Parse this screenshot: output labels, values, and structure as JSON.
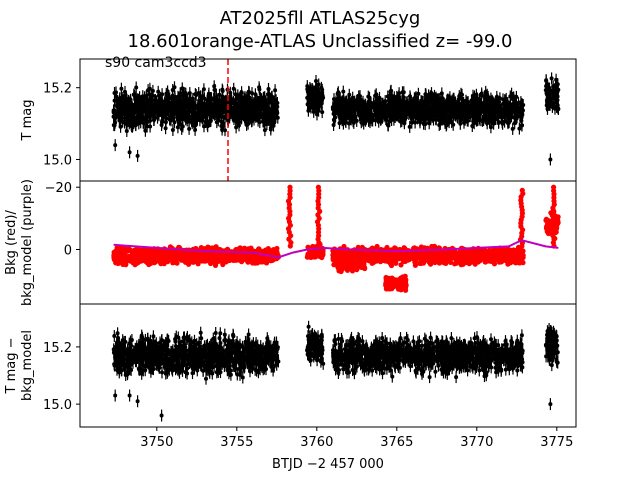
{
  "title_line1": "AT2025fll  ATLAS25cyg",
  "title_line2": "18.601orange-ATLAS Unclassified z= -99.0",
  "annotation": "s90 cam3ccd3",
  "colors": {
    "photometry": "#000000",
    "background": "#ff0000",
    "bkg_model": "#bf00bf",
    "marker": "#ff0000"
  },
  "chart_data": [
    {
      "type": "scatter",
      "panel": "top",
      "ylabel": "T mag",
      "y_inverted": true,
      "ylim": [
        15.28,
        14.94
      ],
      "xlim": [
        3745.2,
        3776.2
      ],
      "yticks": [
        15.0,
        15.2
      ],
      "ytick_labels": [
        "15.0",
        "15.2"
      ],
      "segments": [
        {
          "x": [
            3747.3,
            3757.6
          ],
          "y_center": 15.14,
          "spread": 0.07
        },
        {
          "x": [
            3759.4,
            3760.4
          ],
          "y_center": 15.17,
          "spread": 0.06
        },
        {
          "x": [
            3761.0,
            3772.9
          ],
          "y_center": 15.14,
          "spread": 0.06
        },
        {
          "x": [
            3774.3,
            3775.1
          ],
          "y_center": 15.18,
          "spread": 0.06
        }
      ],
      "outliers": [
        {
          "x": 3747.4,
          "y": 15.04
        },
        {
          "x": 3748.3,
          "y": 15.02
        },
        {
          "x": 3748.8,
          "y": 15.01
        },
        {
          "x": 3774.6,
          "y": 15.0
        }
      ],
      "vline": {
        "x": 3754.45,
        "label": ""
      }
    },
    {
      "type": "scatter",
      "panel": "middle",
      "ylabel_line1": "Bkg (red)/",
      "ylabel_line2": "bkg_model (purple)",
      "ylim": [
        -22,
        17.5
      ],
      "xlim": [
        3745.2,
        3776.2
      ],
      "yticks": [
        0,
        -20
      ],
      "ytick_labels": [
        "0",
        "−20"
      ],
      "series": [
        {
          "name": "Bkg",
          "color": "#ff0000"
        },
        {
          "name": "bkg_model",
          "color": "#bf00bf"
        }
      ],
      "segments": [
        {
          "x": [
            3747.3,
            3757.6
          ],
          "y_center": 2.0,
          "spread": 3.5
        },
        {
          "x": [
            3759.4,
            3760.4
          ],
          "y_center": 1.0,
          "spread": 3.0
        },
        {
          "x": [
            3761.0,
            3772.9
          ],
          "y_center": 2.0,
          "spread": 3.5
        },
        {
          "x": [
            3774.3,
            3775.1
          ],
          "y_center": -8.0,
          "spread": 5.0
        }
      ],
      "bumps": [
        {
          "x": [
            3761.2,
            3763.0
          ],
          "y_center": 5.0
        },
        {
          "x": [
            3764.3,
            3765.6
          ],
          "y_center": 11.0
        }
      ],
      "dips": [
        {
          "x": 3758.3,
          "y": -20
        },
        {
          "x": 3760.1,
          "y": -20
        },
        {
          "x": 3772.8,
          "y": -19
        },
        {
          "x": 3774.8,
          "y": -20
        }
      ],
      "model": [
        {
          "x": 3747.3,
          "y": -1.5
        },
        {
          "x": 3750.0,
          "y": -0.5
        },
        {
          "x": 3753.0,
          "y": 0.5
        },
        {
          "x": 3756.0,
          "y": 1.0
        },
        {
          "x": 3757.6,
          "y": 2.5
        },
        {
          "x": 3758.5,
          "y": 1.0
        },
        {
          "x": 3759.4,
          "y": 0.0
        },
        {
          "x": 3760.4,
          "y": -0.5
        },
        {
          "x": 3762.0,
          "y": 0.0
        },
        {
          "x": 3765.0,
          "y": 0.5
        },
        {
          "x": 3768.0,
          "y": 0.0
        },
        {
          "x": 3770.0,
          "y": -0.5
        },
        {
          "x": 3772.0,
          "y": -1.0
        },
        {
          "x": 3772.8,
          "y": -3.0
        },
        {
          "x": 3774.3,
          "y": -1.0
        },
        {
          "x": 3775.1,
          "y": -0.5
        }
      ]
    },
    {
      "type": "scatter",
      "panel": "bottom",
      "ylabel_line1": "T mag −",
      "ylabel_line2": "bkg_model",
      "y_inverted": true,
      "ylim": [
        15.35,
        14.92
      ],
      "xlim": [
        3745.2,
        3776.2
      ],
      "yticks": [
        15.0,
        15.2
      ],
      "ytick_labels": [
        "15.0",
        "15.2"
      ],
      "xticks": [
        3750,
        3755,
        3760,
        3765,
        3770,
        3775
      ],
      "xtick_labels": [
        "3750",
        "3755",
        "3760",
        "3765",
        "3770",
        "3775"
      ],
      "xlabel": "BTJD −2 457 000",
      "segments": [
        {
          "x": [
            3747.3,
            3757.6
          ],
          "y_center": 15.17,
          "spread": 0.09
        },
        {
          "x": [
            3759.4,
            3760.4
          ],
          "y_center": 15.2,
          "spread": 0.08
        },
        {
          "x": [
            3761.0,
            3772.9
          ],
          "y_center": 15.17,
          "spread": 0.08
        },
        {
          "x": [
            3774.3,
            3775.1
          ],
          "y_center": 15.2,
          "spread": 0.08
        }
      ],
      "outliers": [
        {
          "x": 3747.4,
          "y": 15.03
        },
        {
          "x": 3748.3,
          "y": 15.03
        },
        {
          "x": 3748.8,
          "y": 15.01
        },
        {
          "x": 3750.3,
          "y": 14.96
        },
        {
          "x": 3774.6,
          "y": 15.0
        }
      ]
    }
  ]
}
